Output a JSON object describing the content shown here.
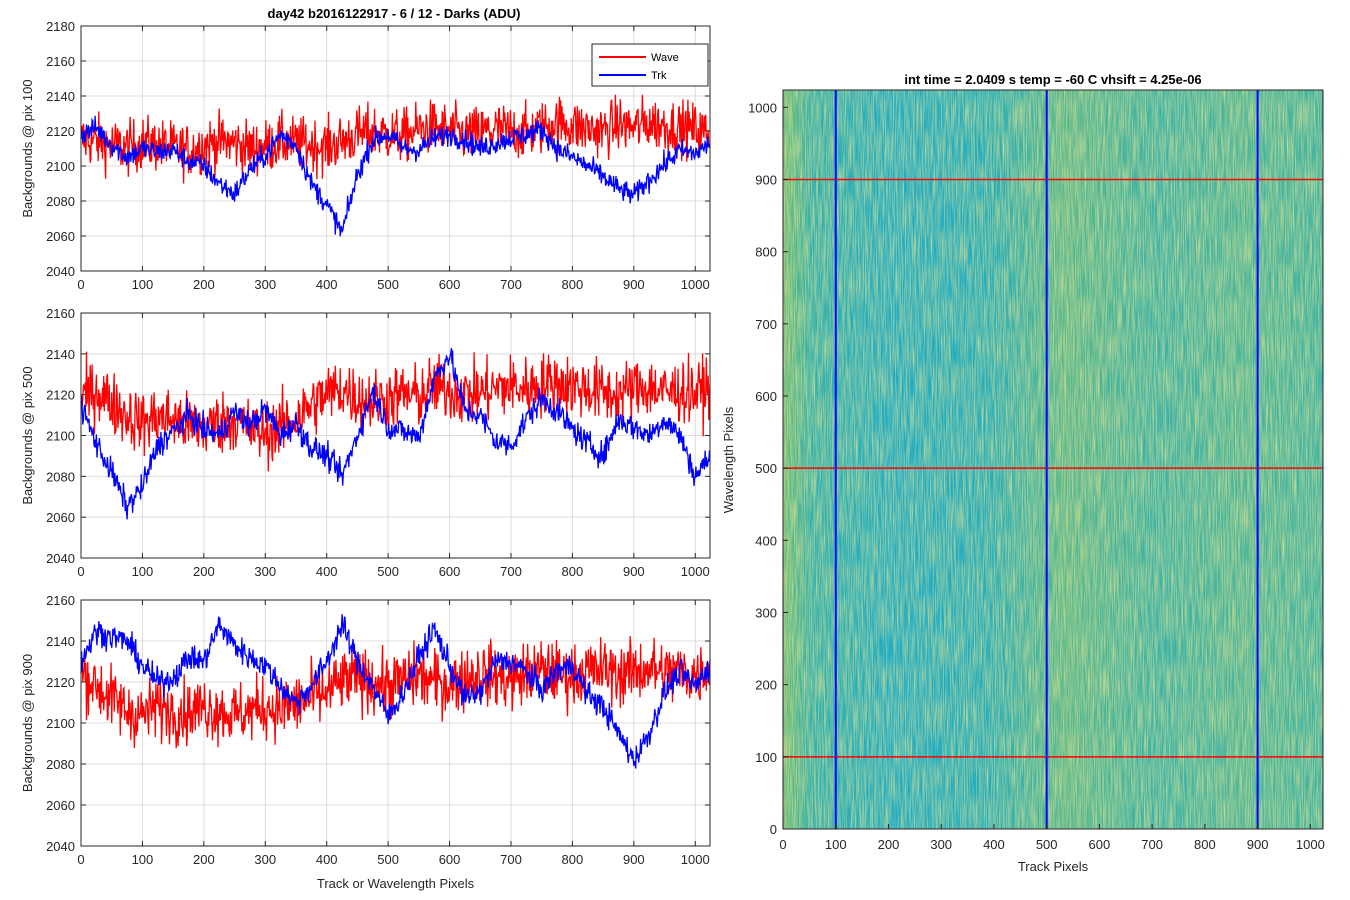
{
  "figure_title": "day42 b2016122917 - 6 / 12 - Darks (ADU)",
  "colors": {
    "wave": "#ff0000",
    "trk": "#0000ff",
    "grid": "#dcdcdc",
    "axis": "#262626"
  },
  "chart_data": [
    {
      "type": "line",
      "title": "day42 b2016122917 - 6 / 12 - Darks (ADU)",
      "xlabel": "",
      "ylabel": "Backgrounds @ pix 100",
      "xlim": [
        0,
        1024
      ],
      "ylim": [
        2040,
        2180
      ],
      "xticks": [
        0,
        100,
        200,
        300,
        400,
        500,
        600,
        700,
        800,
        900,
        1000
      ],
      "yticks": [
        2040,
        2060,
        2080,
        2100,
        2120,
        2140,
        2160,
        2180
      ],
      "grid": true,
      "legend": {
        "position": "top-right",
        "entries": [
          "Wave",
          "Trk"
        ]
      },
      "series": [
        {
          "name": "Wave",
          "color": "#ff0000",
          "x": [
            0,
            25,
            50,
            75,
            100,
            125,
            150,
            175,
            200,
            225,
            250,
            275,
            300,
            325,
            350,
            375,
            400,
            425,
            450,
            475,
            500,
            525,
            550,
            575,
            600,
            625,
            650,
            675,
            700,
            725,
            750,
            775,
            800,
            825,
            850,
            875,
            900,
            925,
            950,
            975,
            1000,
            1024
          ],
          "y": [
            2115,
            2114,
            2112,
            2110,
            2113,
            2112,
            2110,
            2109,
            2112,
            2114,
            2113,
            2110,
            2111,
            2114,
            2113,
            2112,
            2111,
            2114,
            2118,
            2120,
            2118,
            2117,
            2121,
            2122,
            2120,
            2118,
            2119,
            2121,
            2120,
            2119,
            2122,
            2125,
            2123,
            2121,
            2120,
            2124,
            2122,
            2125,
            2123,
            2122,
            2121,
            2118
          ]
        },
        {
          "name": "Trk",
          "color": "#0000ff",
          "x": [
            0,
            25,
            50,
            75,
            100,
            125,
            150,
            175,
            200,
            225,
            250,
            275,
            300,
            325,
            350,
            375,
            400,
            425,
            450,
            475,
            500,
            525,
            550,
            575,
            600,
            625,
            650,
            675,
            700,
            725,
            750,
            775,
            800,
            825,
            850,
            875,
            900,
            925,
            950,
            975,
            1000,
            1024
          ],
          "y": [
            2118,
            2122,
            2112,
            2105,
            2110,
            2108,
            2109,
            2103,
            2100,
            2090,
            2084,
            2098,
            2106,
            2118,
            2112,
            2090,
            2078,
            2062,
            2095,
            2115,
            2118,
            2110,
            2109,
            2116,
            2118,
            2115,
            2110,
            2113,
            2116,
            2118,
            2121,
            2110,
            2105,
            2100,
            2094,
            2087,
            2083,
            2092,
            2101,
            2109,
            2107,
            2113
          ]
        }
      ]
    },
    {
      "type": "line",
      "title": "",
      "xlabel": "",
      "ylabel": "Backgrounds @ pix 500",
      "xlim": [
        0,
        1024
      ],
      "ylim": [
        2040,
        2160
      ],
      "xticks": [
        0,
        100,
        200,
        300,
        400,
        500,
        600,
        700,
        800,
        900,
        1000
      ],
      "yticks": [
        2040,
        2060,
        2080,
        2100,
        2120,
        2140,
        2160
      ],
      "grid": true,
      "series": [
        {
          "name": "Wave",
          "color": "#ff0000",
          "x": [
            0,
            25,
            50,
            75,
            100,
            125,
            150,
            175,
            200,
            225,
            250,
            275,
            300,
            325,
            350,
            375,
            400,
            425,
            450,
            475,
            500,
            525,
            550,
            575,
            600,
            625,
            650,
            675,
            700,
            725,
            750,
            775,
            800,
            825,
            850,
            875,
            900,
            925,
            950,
            975,
            1000,
            1024
          ],
          "y": [
            2118,
            2122,
            2116,
            2110,
            2106,
            2109,
            2108,
            2105,
            2104,
            2106,
            2108,
            2103,
            2101,
            2104,
            2108,
            2115,
            2120,
            2123,
            2118,
            2117,
            2118,
            2120,
            2119,
            2124,
            2122,
            2120,
            2121,
            2123,
            2124,
            2123,
            2125,
            2126,
            2124,
            2123,
            2121,
            2120,
            2123,
            2124,
            2121,
            2122,
            2121,
            2124
          ]
        },
        {
          "name": "Trk",
          "color": "#0000ff",
          "x": [
            0,
            25,
            50,
            75,
            100,
            125,
            150,
            175,
            200,
            225,
            250,
            275,
            300,
            325,
            350,
            375,
            400,
            425,
            450,
            475,
            500,
            525,
            550,
            575,
            600,
            625,
            650,
            675,
            700,
            725,
            750,
            775,
            800,
            825,
            850,
            875,
            900,
            925,
            950,
            975,
            1000,
            1024
          ],
          "y": [
            2115,
            2096,
            2082,
            2065,
            2075,
            2095,
            2102,
            2110,
            2103,
            2100,
            2112,
            2105,
            2113,
            2100,
            2106,
            2094,
            2090,
            2080,
            2100,
            2122,
            2104,
            2102,
            2099,
            2128,
            2140,
            2112,
            2110,
            2097,
            2095,
            2108,
            2118,
            2112,
            2103,
            2096,
            2090,
            2108,
            2104,
            2100,
            2108,
            2100,
            2080,
            2090
          ]
        }
      ]
    },
    {
      "type": "line",
      "title": "",
      "xlabel": "Track or Wavelength Pixels",
      "ylabel": "Backgrounds @ pix 900",
      "xlim": [
        0,
        1024
      ],
      "ylim": [
        2040,
        2160
      ],
      "xticks": [
        0,
        100,
        200,
        300,
        400,
        500,
        600,
        700,
        800,
        900,
        1000
      ],
      "yticks": [
        2040,
        2060,
        2080,
        2100,
        2120,
        2140,
        2160
      ],
      "grid": true,
      "series": [
        {
          "name": "Wave",
          "color": "#ff0000",
          "x": [
            0,
            25,
            50,
            75,
            100,
            125,
            150,
            175,
            200,
            225,
            250,
            275,
            300,
            325,
            350,
            375,
            400,
            425,
            450,
            475,
            500,
            525,
            550,
            575,
            600,
            625,
            650,
            675,
            700,
            725,
            750,
            775,
            800,
            825,
            850,
            875,
            900,
            925,
            950,
            975,
            1000,
            1024
          ],
          "y": [
            2125,
            2118,
            2112,
            2106,
            2104,
            2108,
            2106,
            2105,
            2108,
            2106,
            2104,
            2106,
            2108,
            2107,
            2109,
            2112,
            2115,
            2120,
            2122,
            2120,
            2118,
            2121,
            2123,
            2120,
            2119,
            2122,
            2124,
            2123,
            2121,
            2124,
            2126,
            2124,
            2123,
            2125,
            2126,
            2124,
            2125,
            2127,
            2124,
            2125,
            2123,
            2128
          ]
        },
        {
          "name": "Trk",
          "color": "#0000ff",
          "x": [
            0,
            25,
            50,
            75,
            100,
            125,
            150,
            175,
            200,
            225,
            250,
            275,
            300,
            325,
            350,
            375,
            400,
            425,
            450,
            475,
            500,
            525,
            550,
            575,
            600,
            625,
            650,
            675,
            700,
            725,
            750,
            775,
            800,
            825,
            850,
            875,
            900,
            925,
            950,
            975,
            1000,
            1024
          ],
          "y": [
            2130,
            2145,
            2142,
            2140,
            2128,
            2120,
            2122,
            2132,
            2130,
            2148,
            2138,
            2132,
            2128,
            2118,
            2110,
            2118,
            2130,
            2148,
            2130,
            2118,
            2103,
            2115,
            2132,
            2146,
            2128,
            2112,
            2115,
            2130,
            2130,
            2125,
            2116,
            2126,
            2128,
            2114,
            2108,
            2095,
            2082,
            2095,
            2115,
            2125,
            2118,
            2128
          ]
        }
      ]
    },
    {
      "type": "heatmap",
      "title": "int time = 2.0409 s    temp = -60 C    vhsift = 4.25e-06",
      "xlabel": "Track Pixels",
      "ylabel": "Wavelength Pixels",
      "xlim": [
        0,
        1024
      ],
      "ylim": [
        0,
        1024
      ],
      "xticks": [
        0,
        100,
        200,
        300,
        400,
        500,
        600,
        700,
        800,
        900,
        1000
      ],
      "yticks": [
        0,
        100,
        200,
        300,
        400,
        500,
        600,
        700,
        800,
        900,
        1000
      ],
      "colormap": [
        "#1aa9cf",
        "#33b3a6",
        "#8ac05a",
        "#cfc347"
      ],
      "overlay_vertical_lines": {
        "color": "#0000ff",
        "x": [
          100,
          500,
          900
        ]
      },
      "overlay_horizontal_lines": {
        "color": "#ff0000",
        "y": [
          100,
          500,
          900
        ]
      }
    }
  ]
}
